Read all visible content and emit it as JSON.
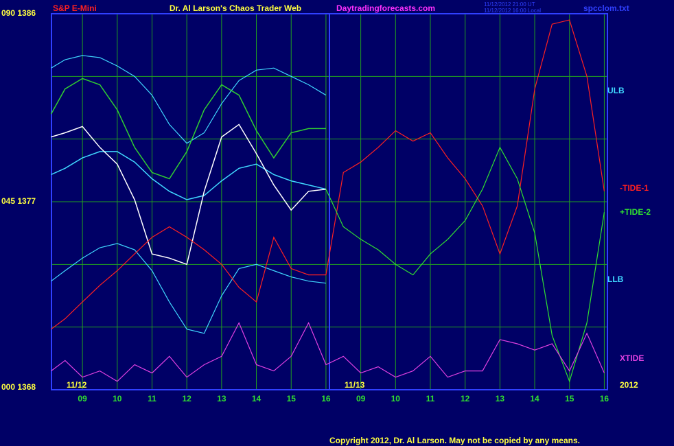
{
  "chart_data": {
    "type": "line",
    "instrument": "S&P E-Mini",
    "title": "Dr. Al Larson's Chaos Trader Web",
    "website": "Daytradingforecasts.com",
    "timestamps": [
      "11/12/2012 21:00 UT",
      "11/12/2012 16:00 Local"
    ],
    "filename": "spcclom.txt",
    "copyright": "Copyright 2012, Dr. Al Larson. May not be copied by any means.",
    "date_labels": [
      "11/12",
      "11/13",
      "2012"
    ],
    "x": [
      8.1,
      8.5,
      9,
      9.5,
      10,
      10.5,
      11,
      11.5,
      12,
      12.5,
      13,
      13.5,
      14,
      14.5,
      15,
      15.5,
      16,
      16.5,
      17,
      17.5,
      18,
      18.5,
      19,
      19.5,
      20,
      20.5,
      21,
      21.5,
      22,
      22.5,
      23,
      23.5,
      24
    ],
    "xlim": [
      8.11,
      24.09
    ],
    "xticks": [
      {
        "value": 9,
        "label": "09"
      },
      10,
      11,
      12,
      13,
      14,
      15,
      16,
      {
        "value": 17,
        "label": "09"
      },
      {
        "value": 18,
        "label": "10"
      },
      {
        "value": 19,
        "label": "11"
      },
      {
        "value": 20,
        "label": "12"
      },
      {
        "value": 21,
        "label": "13"
      },
      {
        "value": 22,
        "label": "14"
      },
      {
        "value": 23,
        "label": "15"
      },
      {
        "value": 24,
        "label": "16"
      }
    ],
    "day_divider": 16.1,
    "ylim": [
      1368,
      1386
    ],
    "yticks": [
      {
        "value": 1386,
        "label": "090 1386"
      },
      {
        "value": 1377,
        "label": "045 1377"
      },
      {
        "value": 1368,
        "label": "000 1368"
      }
    ],
    "ygrid": [
      1371,
      1374,
      1380,
      1383
    ],
    "grid": true,
    "series": [
      {
        "name": "ULB",
        "color": "#40d8ff",
        "values": [
          1383.4,
          1383.8,
          1384.0,
          1383.9,
          1383.5,
          1383.0,
          1382.1,
          1380.7,
          1379.8,
          1380.3,
          1381.7,
          1382.8,
          1383.3,
          1383.4,
          1383.0,
          1382.6,
          1382.1,
          null,
          null,
          null,
          null,
          null,
          null,
          null,
          null,
          null,
          null,
          null,
          null,
          null,
          null,
          null,
          null
        ]
      },
      {
        "color": "#40d8ff",
        "values": [
          1378.3,
          1378.6,
          1379.1,
          1379.4,
          1379.4,
          1378.9,
          1378.1,
          1377.5,
          1377.1,
          1377.3,
          1378.0,
          1378.6,
          1378.8,
          1378.3,
          1378.0,
          1377.8,
          1377.6,
          null,
          null,
          null,
          null,
          null,
          null,
          null,
          null,
          null,
          null,
          null,
          null,
          null,
          null,
          null,
          null
        ]
      },
      {
        "name": "LLB",
        "color": "#40d8ff",
        "values": [
          1373.2,
          1373.7,
          1374.3,
          1374.8,
          1375.0,
          1374.7,
          1373.7,
          1372.2,
          1370.9,
          1370.7,
          1372.5,
          1373.8,
          1374.0,
          1373.7,
          1373.4,
          1373.2,
          1373.1,
          null,
          null,
          null,
          null,
          null,
          null,
          null,
          null,
          null,
          null,
          null,
          null,
          null,
          null,
          null,
          null
        ]
      },
      {
        "color": "#30d030",
        "values": [
          1381.2,
          1382.4,
          1382.9,
          1382.6,
          1381.4,
          1379.6,
          1378.4,
          1378.1,
          1379.4,
          1381.4,
          1382.6,
          1382.1,
          1380.4,
          1379.1,
          1380.3,
          1380.5,
          1380.5,
          null,
          null,
          null,
          null,
          null,
          null,
          null,
          null,
          null,
          null,
          null,
          null,
          null,
          null,
          null,
          null
        ]
      },
      {
        "color": "#ffffff",
        "values": [
          1380.1,
          1380.3,
          1380.6,
          1379.6,
          1378.8,
          1377.1,
          1374.5,
          1374.3,
          1374.0,
          1377.5,
          1380.1,
          1380.7,
          1379.3,
          1377.8,
          1376.6,
          1377.5,
          1377.6,
          null,
          null,
          null,
          null,
          null,
          null,
          null,
          null,
          null,
          null,
          null,
          null,
          null,
          null,
          null,
          null
        ]
      },
      {
        "name": "-TIDE-1",
        "color": "#ff2020",
        "values": [
          1370.9,
          1371.4,
          1372.2,
          1373.0,
          1373.7,
          1374.5,
          1375.3,
          1375.8,
          1375.3,
          1374.7,
          1374.0,
          1372.9,
          1372.2,
          1375.3,
          1373.8,
          1373.5,
          1373.5,
          1378.4,
          1378.9,
          1379.6,
          1380.4,
          1379.9,
          1380.3,
          1379.1,
          1378.1,
          1376.8,
          1374.5,
          1376.8,
          1382.4,
          1385.5,
          1385.7,
          1383.0,
          1377.5
        ]
      },
      {
        "name": "+TIDE-2",
        "color": "#30e030",
        "values": [
          null,
          null,
          null,
          null,
          null,
          null,
          null,
          null,
          null,
          null,
          null,
          null,
          null,
          null,
          null,
          null,
          1377.6,
          1375.8,
          1375.2,
          1374.7,
          1374.0,
          1373.5,
          1374.5,
          1375.2,
          1376.1,
          1377.6,
          1379.6,
          1378.1,
          1375.5,
          1370.6,
          1368.4,
          1371.2,
          1376.5
        ]
      },
      {
        "name": "XTIDE",
        "color": "#e040e0",
        "values": [
          1368.9,
          1369.4,
          1368.6,
          1368.9,
          1368.4,
          1369.2,
          1368.8,
          1369.6,
          1368.6,
          1369.2,
          1369.6,
          1371.2,
          1369.2,
          1368.9,
          1369.6,
          1371.2,
          1369.2,
          1369.6,
          1368.8,
          1369.1,
          1368.6,
          1368.9,
          1369.6,
          1368.6,
          1368.9,
          1368.9,
          1370.4,
          1370.2,
          1369.9,
          1370.2,
          1368.9,
          1370.7,
          1368.8
        ]
      }
    ]
  }
}
